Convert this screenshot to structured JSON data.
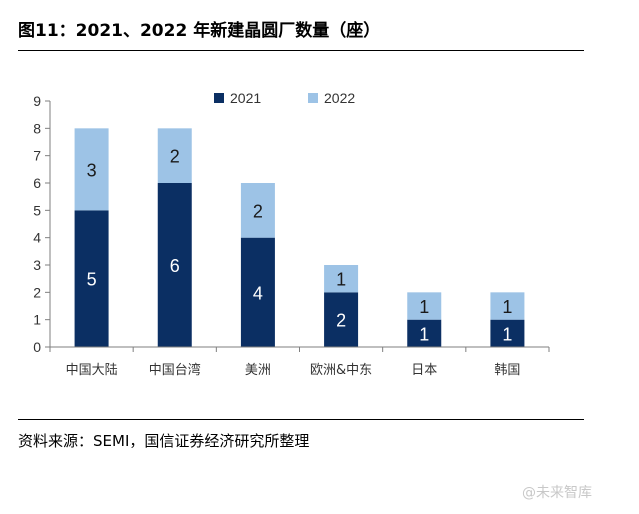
{
  "header": {
    "title": "图11：2021、2022 年新建晶圆厂数量（座）"
  },
  "footer": {
    "source": "资料来源：SEMI，国信证券经济研究所整理"
  },
  "watermark": {
    "text": "@未来智库"
  },
  "colors": {
    "series_2021": "#0b2f63",
    "series_2022": "#9dc3e6",
    "axis": "#7f7f7f"
  },
  "chart_data": {
    "type": "bar",
    "stacked": true,
    "title": "",
    "xlabel": "",
    "ylabel": "",
    "categories": [
      "中国大陆",
      "中国台湾",
      "美洲",
      "欧洲&中东",
      "日本",
      "韩国"
    ],
    "series": [
      {
        "name": "2021",
        "values": [
          5,
          6,
          4,
          2,
          1,
          1
        ]
      },
      {
        "name": "2022",
        "values": [
          3,
          2,
          2,
          1,
          1,
          1
        ]
      }
    ],
    "ylim": [
      0,
      9
    ],
    "yticks": [
      "0",
      "1",
      "2",
      "3",
      "4",
      "5",
      "6",
      "7",
      "8",
      "9"
    ],
    "grid": false,
    "legend": "top-center"
  }
}
